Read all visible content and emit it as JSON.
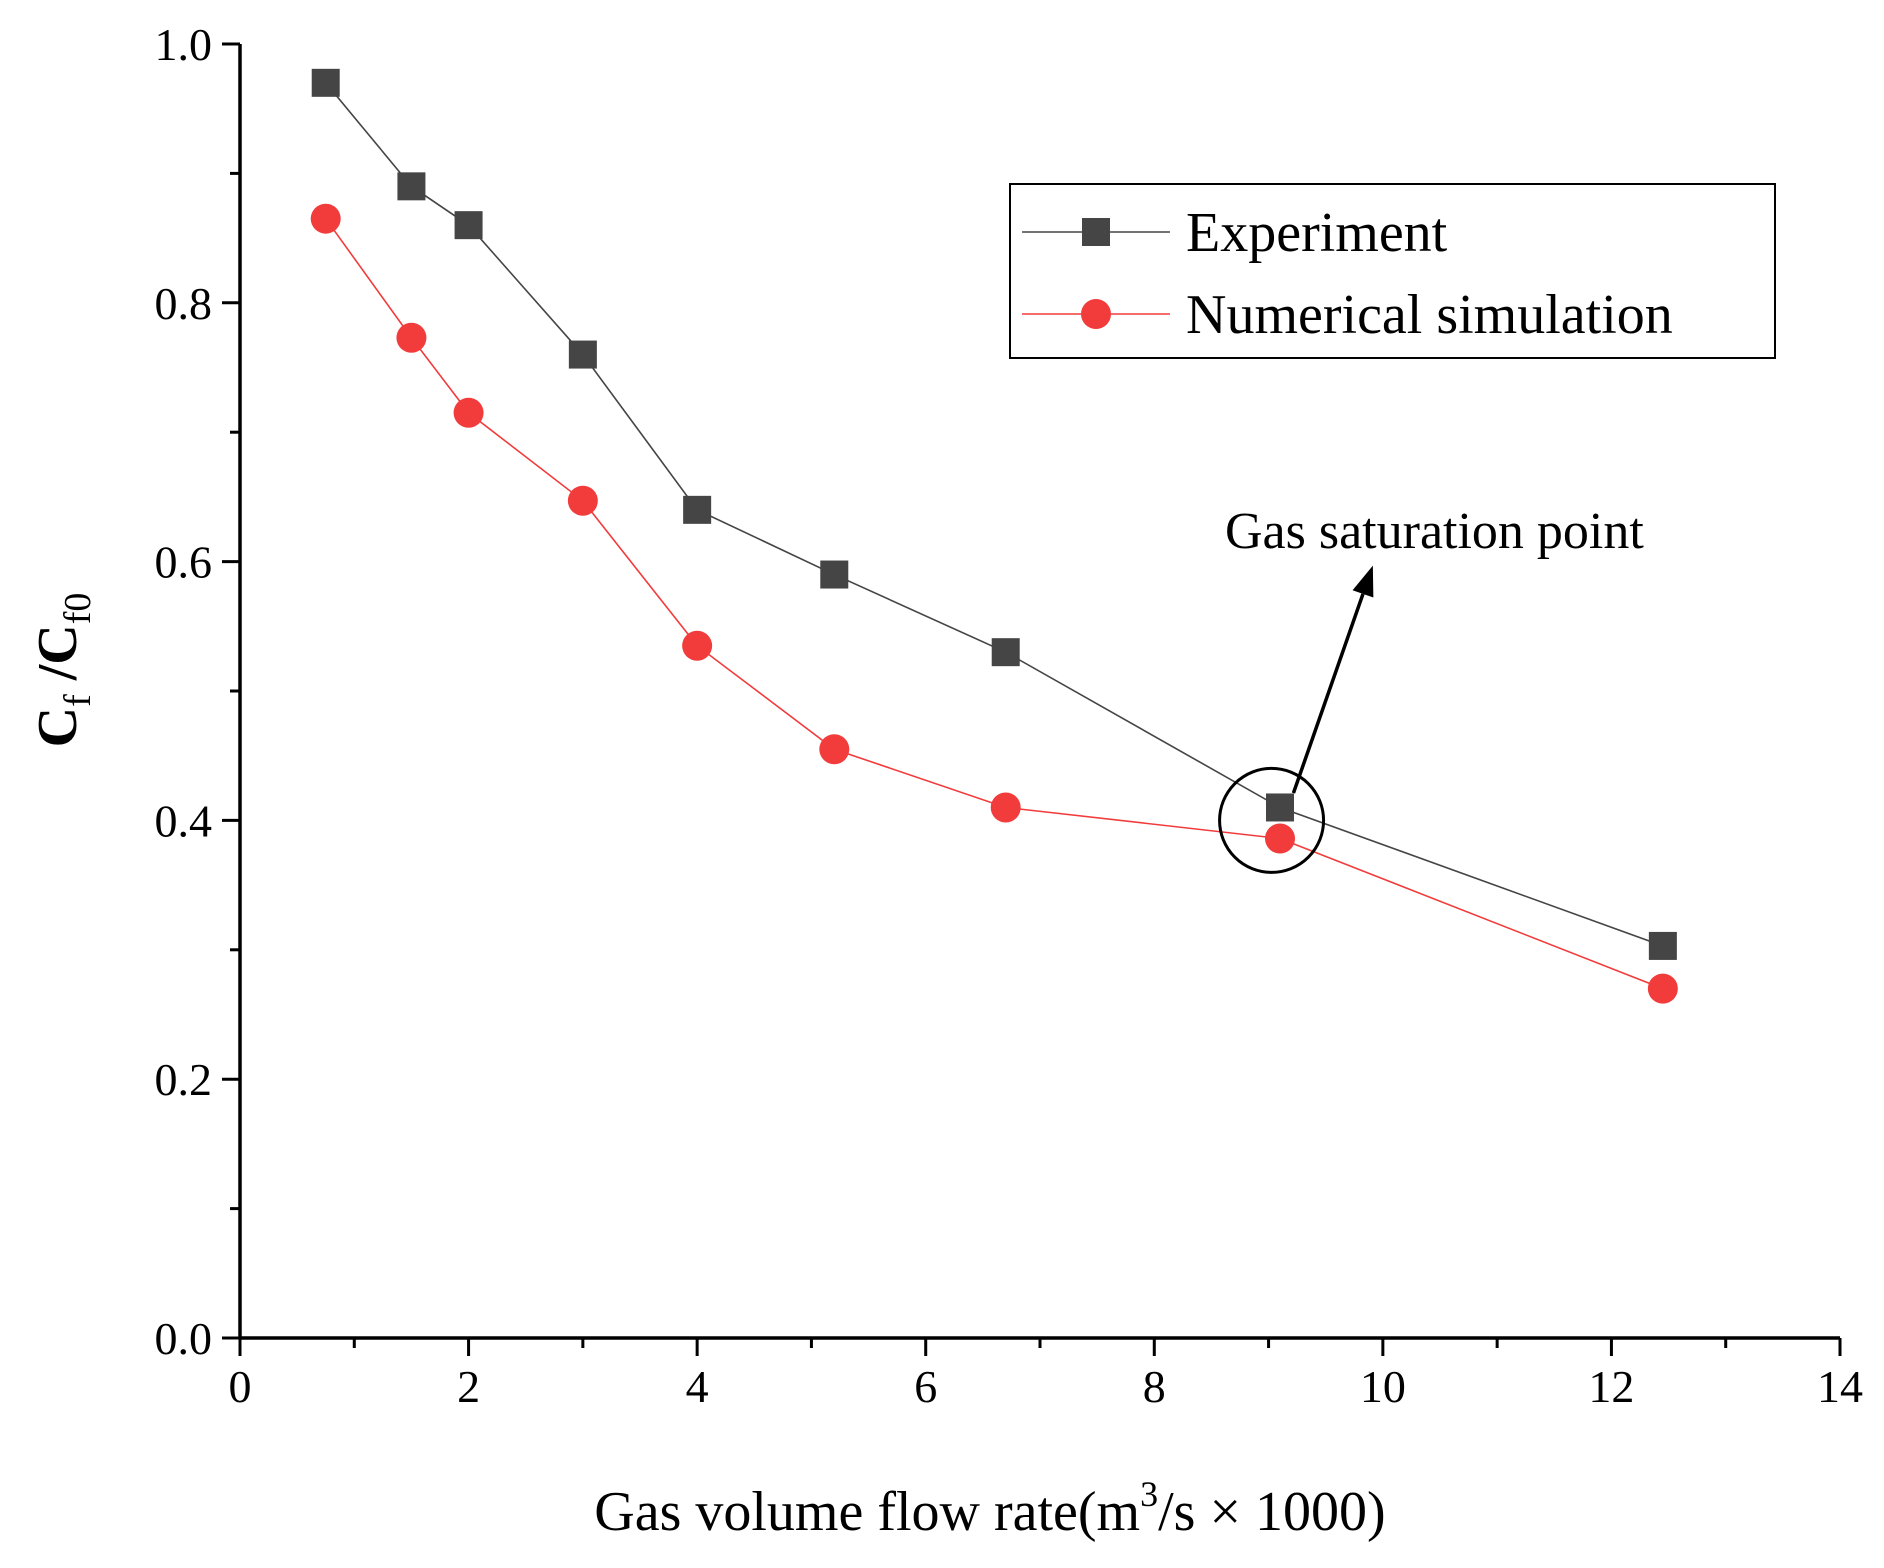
{
  "chart_data": {
    "type": "line",
    "xlabel": {
      "main": "Gas volume flow rate(m",
      "sup": "3",
      "rest": "/s × 1000)"
    },
    "ylabel": {
      "c1": "C",
      "s1": "f",
      "mid": " /C",
      "s2": "f0"
    },
    "xlim": [
      0,
      14
    ],
    "ylim": [
      0,
      1.0
    ],
    "x_ticks": [
      0,
      2,
      4,
      6,
      8,
      10,
      12,
      14
    ],
    "x_tick_labels": [
      "0",
      "2",
      "4",
      "6",
      "8",
      "10",
      "12",
      "14"
    ],
    "y_ticks": [
      0.0,
      0.2,
      0.4,
      0.6,
      0.8,
      1.0
    ],
    "y_tick_labels": [
      "0.0",
      "0.2",
      "0.4",
      "0.6",
      "0.8",
      "1.0"
    ],
    "x_minor_step": 1,
    "y_minor_step": 0.1,
    "grid": false,
    "legend_position": "top-right",
    "series": [
      {
        "name": "Experiment",
        "marker": "square",
        "color": "#454545",
        "x": [
          0.75,
          1.5,
          2.0,
          3.0,
          4.0,
          5.2,
          6.7,
          9.1,
          12.45
        ],
        "y": [
          0.97,
          0.89,
          0.86,
          0.76,
          0.64,
          0.59,
          0.53,
          0.41,
          0.303
        ]
      },
      {
        "name": "Numerical simulation",
        "marker": "circle",
        "color": "#f23b3b",
        "x": [
          0.75,
          1.5,
          2.0,
          3.0,
          4.0,
          5.2,
          6.7,
          9.1,
          12.45
        ],
        "y": [
          0.865,
          0.773,
          0.715,
          0.647,
          0.535,
          0.455,
          0.41,
          0.386,
          0.27
        ]
      }
    ],
    "annotations": [
      {
        "text": "Gas saturation point",
        "circle_at": [
          9.0,
          0.4
        ],
        "arrow_from": [
          9.2,
          0.435
        ],
        "arrow_to": [
          10.0,
          0.6
        ]
      }
    ]
  }
}
